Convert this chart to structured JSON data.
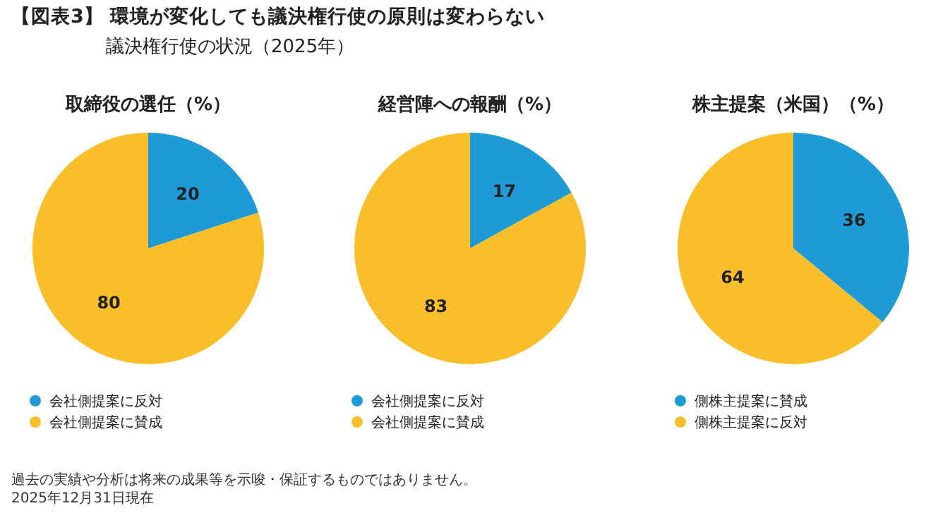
{
  "chart_data": [
    {
      "type": "other",
      "title": "【図表3】 環境が変化しても議決権行使の原則は変わらない",
      "subtitle": "議決権行使の状況（2025年）",
      "annotations": [
        "過去の実績や分析は将来の成果等を示唆・保証するものではありません。",
        "2025年12月31日現在"
      ]
    },
    {
      "type": "pie",
      "title": "取締役の選任（%）",
      "categories": [
        "会社側提案に反対",
        "会社側提案に賛成"
      ],
      "values": [
        20,
        80
      ],
      "colors": [
        "#1e9ad6",
        "#fbbe2b"
      ],
      "data_labels": true,
      "legend": "bottom"
    },
    {
      "type": "pie",
      "title": "経営陣への報酬（%）",
      "categories": [
        "会社側提案に反対",
        "会社側提案に賛成"
      ],
      "values": [
        17,
        83
      ],
      "colors": [
        "#1e9ad6",
        "#fbbe2b"
      ],
      "data_labels": true,
      "legend": "bottom"
    },
    {
      "type": "pie",
      "title": "株主提案（米国）（%）",
      "categories": [
        "側株主提案に賛成",
        "側株主提案に反対"
      ],
      "values": [
        36,
        64
      ],
      "colors": [
        "#1e9ad6",
        "#fbbe2b"
      ],
      "data_labels": true,
      "legend": "bottom"
    }
  ]
}
